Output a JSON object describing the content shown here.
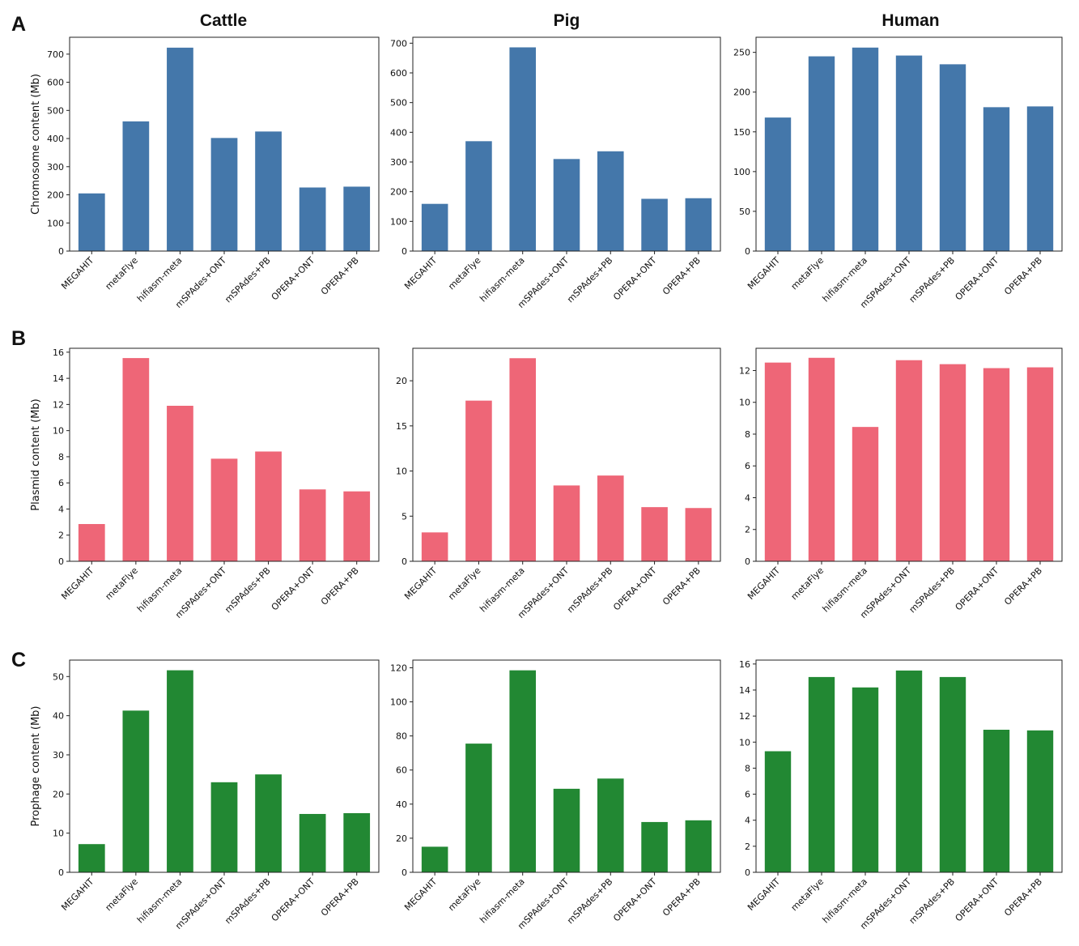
{
  "figure": {
    "column_titles": [
      "Cattle",
      "Pig",
      "Human"
    ],
    "row_labels": [
      "A",
      "B",
      "C"
    ],
    "row_ylabels": [
      "Chromosome content (Mb)",
      "Plasmid content (Mb)",
      "Prophage content (Mb)"
    ],
    "row_colors": [
      "#4477aa",
      "#ee6677",
      "#228833"
    ]
  },
  "chart_data": [
    {
      "type": "bar",
      "panel": "A",
      "title": "Cattle",
      "ylabel": "Chromosome content (Mb)",
      "color": "#4477aa",
      "categories": [
        "MEGAHIT",
        "metaFlye",
        "hifiasm-meta",
        "mSPAdes+ONT",
        "mSPAdes+PB",
        "OPERA+ONT",
        "OPERA+PB"
      ],
      "values": [
        205,
        461,
        723,
        402,
        425,
        226,
        229
      ],
      "ylim": [
        0,
        760
      ],
      "yticks": [
        0,
        100,
        200,
        300,
        400,
        500,
        600,
        700
      ]
    },
    {
      "type": "bar",
      "panel": "A",
      "title": "Pig",
      "ylabel": "",
      "color": "#4477aa",
      "categories": [
        "MEGAHIT",
        "metaFlye",
        "hifiasm-meta",
        "mSPAdes+ONT",
        "mSPAdes+PB",
        "OPERA+ONT",
        "OPERA+PB"
      ],
      "values": [
        159,
        370,
        686,
        310,
        336,
        176,
        178
      ],
      "ylim": [
        0,
        720
      ],
      "yticks": [
        0,
        100,
        200,
        300,
        400,
        500,
        600,
        700
      ]
    },
    {
      "type": "bar",
      "panel": "A",
      "title": "Human",
      "ylabel": "",
      "color": "#4477aa",
      "categories": [
        "MEGAHIT",
        "metaFlye",
        "hifiasm-meta",
        "mSPAdes+ONT",
        "mSPAdes+PB",
        "OPERA+ONT",
        "OPERA+PB"
      ],
      "values": [
        168,
        245,
        256,
        246,
        235,
        181,
        182
      ],
      "ylim": [
        0,
        269
      ],
      "yticks": [
        0,
        50,
        100,
        150,
        200,
        250
      ]
    },
    {
      "type": "bar",
      "panel": "B",
      "title": "Cattle",
      "ylabel": "Plasmid content (Mb)",
      "color": "#ee6677",
      "categories": [
        "MEGAHIT",
        "metaFlye",
        "hifiasm-meta",
        "mSPAdes+ONT",
        "mSPAdes+PB",
        "OPERA+ONT",
        "OPERA+PB"
      ],
      "values": [
        2.85,
        15.55,
        11.9,
        7.85,
        8.4,
        5.5,
        5.35
      ],
      "ylim": [
        0,
        16.3
      ],
      "yticks": [
        0,
        2,
        4,
        6,
        8,
        10,
        12,
        14,
        16
      ]
    },
    {
      "type": "bar",
      "panel": "B",
      "title": "Pig",
      "ylabel": "",
      "color": "#ee6677",
      "categories": [
        "MEGAHIT",
        "metaFlye",
        "hifiasm-meta",
        "mSPAdes+ONT",
        "mSPAdes+PB",
        "OPERA+ONT",
        "OPERA+PB"
      ],
      "values": [
        3.2,
        17.8,
        22.5,
        8.4,
        9.5,
        6.0,
        5.9
      ],
      "ylim": [
        0,
        23.6
      ],
      "yticks": [
        0,
        5,
        10,
        15,
        20
      ]
    },
    {
      "type": "bar",
      "panel": "B",
      "title": "Human",
      "ylabel": "",
      "color": "#ee6677",
      "categories": [
        "MEGAHIT",
        "metaFlye",
        "hifiasm-meta",
        "mSPAdes+ONT",
        "mSPAdes+PB",
        "OPERA+ONT",
        "OPERA+PB"
      ],
      "values": [
        12.5,
        12.8,
        8.45,
        12.65,
        12.4,
        12.15,
        12.2
      ],
      "ylim": [
        0,
        13.4
      ],
      "yticks": [
        0,
        2,
        4,
        6,
        8,
        10,
        12
      ]
    },
    {
      "type": "bar",
      "panel": "C",
      "title": "Cattle",
      "ylabel": "Prophage content (Mb)",
      "color": "#228833",
      "categories": [
        "MEGAHIT",
        "metaFlye",
        "hifiasm-meta",
        "mSPAdes+ONT",
        "mSPAdes+PB",
        "OPERA+ONT",
        "OPERA+PB"
      ],
      "values": [
        7.2,
        41.3,
        51.6,
        23.0,
        25.0,
        14.9,
        15.1
      ],
      "ylim": [
        0,
        54.2
      ],
      "yticks": [
        0,
        10,
        20,
        30,
        40,
        50
      ]
    },
    {
      "type": "bar",
      "panel": "C",
      "title": "Pig",
      "ylabel": "",
      "color": "#228833",
      "categories": [
        "MEGAHIT",
        "metaFlye",
        "hifiasm-meta",
        "mSPAdes+ONT",
        "mSPAdes+PB",
        "OPERA+ONT",
        "OPERA+PB"
      ],
      "values": [
        15,
        75.5,
        118.5,
        49,
        55,
        29.5,
        30.5
      ],
      "ylim": [
        0,
        124.5
      ],
      "yticks": [
        0,
        20,
        40,
        60,
        80,
        100,
        120
      ]
    },
    {
      "type": "bar",
      "panel": "C",
      "title": "Human",
      "ylabel": "",
      "color": "#228833",
      "categories": [
        "MEGAHIT",
        "metaFlye",
        "hifiasm-meta",
        "mSPAdes+ONT",
        "mSPAdes+PB",
        "OPERA+ONT",
        "OPERA+PB"
      ],
      "values": [
        9.3,
        15.0,
        14.2,
        15.5,
        15.0,
        10.95,
        10.9
      ],
      "ylim": [
        0,
        16.3
      ],
      "yticks": [
        0,
        2,
        4,
        6,
        8,
        10,
        12,
        14,
        16
      ]
    }
  ]
}
